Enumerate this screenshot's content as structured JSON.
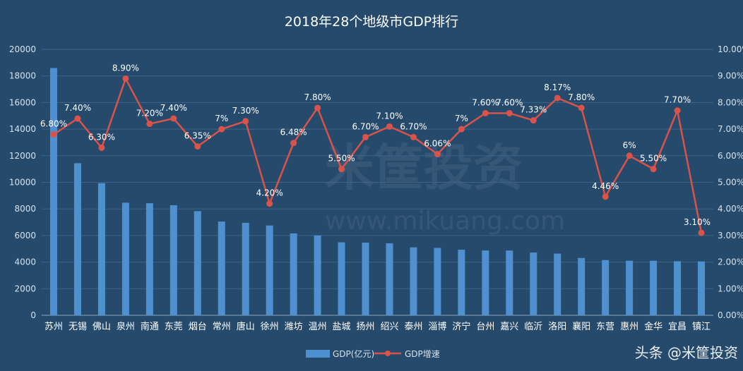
{
  "colors": {
    "background": "#264a6b",
    "bar": "#4f90d0",
    "line": "#d9534a",
    "text": "#ffffff",
    "axis_text": "#d6e2ee",
    "grid": "#3d6488"
  },
  "chart_data": {
    "type": "bar",
    "title": "2018年28个地级市GDP排行",
    "categories": [
      "苏州",
      "无锡",
      "佛山",
      "泉州",
      "南通",
      "东莞",
      "烟台",
      "常州",
      "唐山",
      "徐州",
      "潍坊",
      "温州",
      "盐城",
      "扬州",
      "绍兴",
      "泰州",
      "淄博",
      "济宁",
      "台州",
      "嘉兴",
      "临沂",
      "洛阳",
      "襄阳",
      "东营",
      "惠州",
      "金华",
      "宜昌",
      "镇江"
    ],
    "series": [
      {
        "name": "GDP(亿元)",
        "type": "bar",
        "axis": "left",
        "values": [
          18597,
          11438,
          9936,
          8468,
          8427,
          8278,
          7832,
          7050,
          6955,
          6755,
          6157,
          6006,
          5487,
          5466,
          5417,
          5108,
          5069,
          4931,
          4875,
          4872,
          4717,
          4640,
          4310,
          4152,
          4103,
          4100,
          4065,
          4050
        ]
      },
      {
        "name": "GDP增速",
        "type": "line",
        "axis": "right",
        "values": [
          6.8,
          7.4,
          6.3,
          8.9,
          7.2,
          7.4,
          6.35,
          7.0,
          7.3,
          4.2,
          6.48,
          7.8,
          5.5,
          6.7,
          7.1,
          6.7,
          6.06,
          7.0,
          7.6,
          7.6,
          7.33,
          8.17,
          7.8,
          4.46,
          6.0,
          5.5,
          7.7,
          3.1
        ],
        "labels": [
          "6.80%",
          "7.40%",
          "6.30%",
          "8.90%",
          "7.20%",
          "7.40%",
          "6.35%",
          "7%",
          "7.30%",
          "4.20%",
          "6.48%",
          "7.80%",
          "5.50%",
          "6.70%",
          "7.10%",
          "6.70%",
          "6.06%",
          "7%",
          "7.60%",
          "7.60%",
          "7.33%",
          "8.17%",
          "7.80%",
          "4.46%",
          "6%",
          "5.50%",
          "7.70%",
          "3.10%"
        ]
      }
    ],
    "y_left": {
      "min": 0,
      "max": 20000,
      "ticks": [
        "0",
        "2000",
        "4000",
        "6000",
        "8000",
        "10000",
        "12000",
        "14000",
        "16000",
        "18000",
        "20000"
      ]
    },
    "y_right": {
      "min": 0,
      "max": 10,
      "ticks": [
        "0.00%",
        "1.00%",
        "2.00%",
        "3.00%",
        "4.00%",
        "5.00%",
        "6.00%",
        "7.00%",
        "8.00%",
        "9.00%",
        "10.00%"
      ]
    },
    "grid": true,
    "legend_position": "bottom"
  },
  "watermark": {
    "logo_text": "米筐投资",
    "url_text": "www.mikuang.com",
    "credit": "头条 @米筐投资"
  }
}
